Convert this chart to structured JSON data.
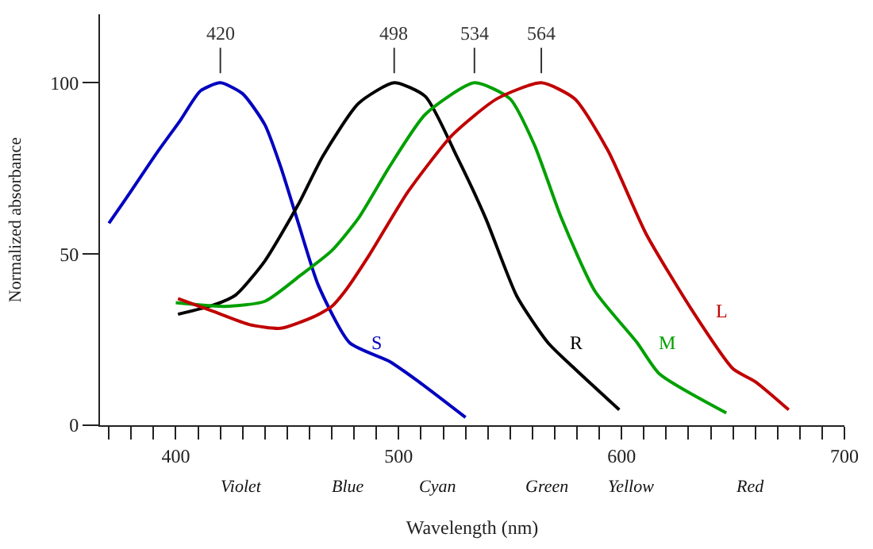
{
  "chart_data": {
    "type": "line",
    "xlabel": "Wavelength (nm)",
    "ylabel": "Normalized absorbance",
    "xlim": [
      366,
      700
    ],
    "ylim": [
      0,
      120
    ],
    "xticks": [
      {
        "value": 370,
        "label": null
      },
      {
        "value": 380,
        "label": null
      },
      {
        "value": 390,
        "label": null
      },
      400,
      {
        "value": 410,
        "label": null
      },
      {
        "value": 420,
        "label": null
      },
      {
        "value": 430,
        "label": null
      },
      {
        "value": 440,
        "label": null
      },
      {
        "value": 450,
        "label": null
      },
      {
        "value": 460,
        "label": null
      },
      {
        "value": 470,
        "label": null
      },
      {
        "value": 480,
        "label": null
      },
      {
        "value": 490,
        "label": null
      },
      500,
      {
        "value": 510,
        "label": null
      },
      {
        "value": 520,
        "label": null
      },
      {
        "value": 530,
        "label": null
      },
      {
        "value": 540,
        "label": null
      },
      {
        "value": 550,
        "label": null
      },
      {
        "value": 560,
        "label": null
      },
      {
        "value": 570,
        "label": null
      },
      {
        "value": 580,
        "label": null
      },
      {
        "value": 590,
        "label": null
      },
      600,
      {
        "value": 610,
        "label": null
      },
      {
        "value": 620,
        "label": null
      },
      {
        "value": 630,
        "label": null
      },
      {
        "value": 640,
        "label": null
      },
      {
        "value": 650,
        "label": null
      },
      {
        "value": 660,
        "label": null
      },
      {
        "value": 670,
        "label": null
      },
      {
        "value": 680,
        "label": null
      },
      {
        "value": 690,
        "label": null
      },
      700
    ],
    "yticks": [
      0,
      50,
      100
    ],
    "legend": false,
    "marker": "none",
    "line_style": "solid",
    "series": [
      {
        "name": "S",
        "color": "#0000c0",
        "x": [
          370,
          378,
          392,
          402,
          411,
          420,
          430,
          440,
          447,
          455,
          464,
          478,
          496,
          509,
          530
        ],
        "values": [
          59,
          66.5,
          80,
          89,
          97.6,
          100,
          96.8,
          87.7,
          75.6,
          59,
          40.8,
          24.1,
          18.6,
          12.7,
          2.3
        ]
      },
      {
        "name": "R",
        "color": "#000000",
        "x": [
          401,
          417,
          427,
          440,
          455,
          466,
          482,
          498,
          512,
          526,
          539,
          553,
          567,
          579,
          599
        ],
        "values": [
          32.4,
          35.1,
          38.1,
          48,
          64.5,
          78.6,
          94,
          100,
          96,
          78.6,
          60.5,
          37.7,
          24.1,
          16.5,
          4.5
        ]
      },
      {
        "name": "M",
        "color": "#00a000",
        "x": [
          400,
          422,
          440,
          456,
          470,
          482,
          496,
          512,
          534,
          550,
          561,
          573,
          588,
          607,
          617,
          647
        ],
        "values": [
          35.8,
          34.7,
          36.2,
          43.8,
          51,
          60.5,
          75.6,
          90.8,
          100,
          95.3,
          81.7,
          60.5,
          39.2,
          24.1,
          15,
          3.6
        ]
      },
      {
        "name": "L",
        "color": "#c00000",
        "x": [
          401,
          417,
          433,
          447,
          462,
          470,
          476,
          487,
          504,
          524,
          544,
          564,
          579,
          594,
          611,
          632,
          650,
          660,
          675
        ],
        "values": [
          37,
          33.2,
          29.4,
          28.3,
          31.7,
          34.7,
          39.2,
          49.9,
          68,
          84.7,
          95.3,
          100,
          95.3,
          80.1,
          55.9,
          33.2,
          16.5,
          12.7,
          4.5
        ]
      }
    ],
    "annotations": [
      {
        "text": "420",
        "x": 420,
        "y": 100
      },
      {
        "text": "498",
        "x": 498,
        "y": 100
      },
      {
        "text": "534",
        "x": 534,
        "y": 100
      },
      {
        "text": "564",
        "x": 564,
        "y": 100
      },
      "Violet",
      "Blue",
      "Cyan",
      "Green",
      "Yellow",
      "Red"
    ]
  }
}
